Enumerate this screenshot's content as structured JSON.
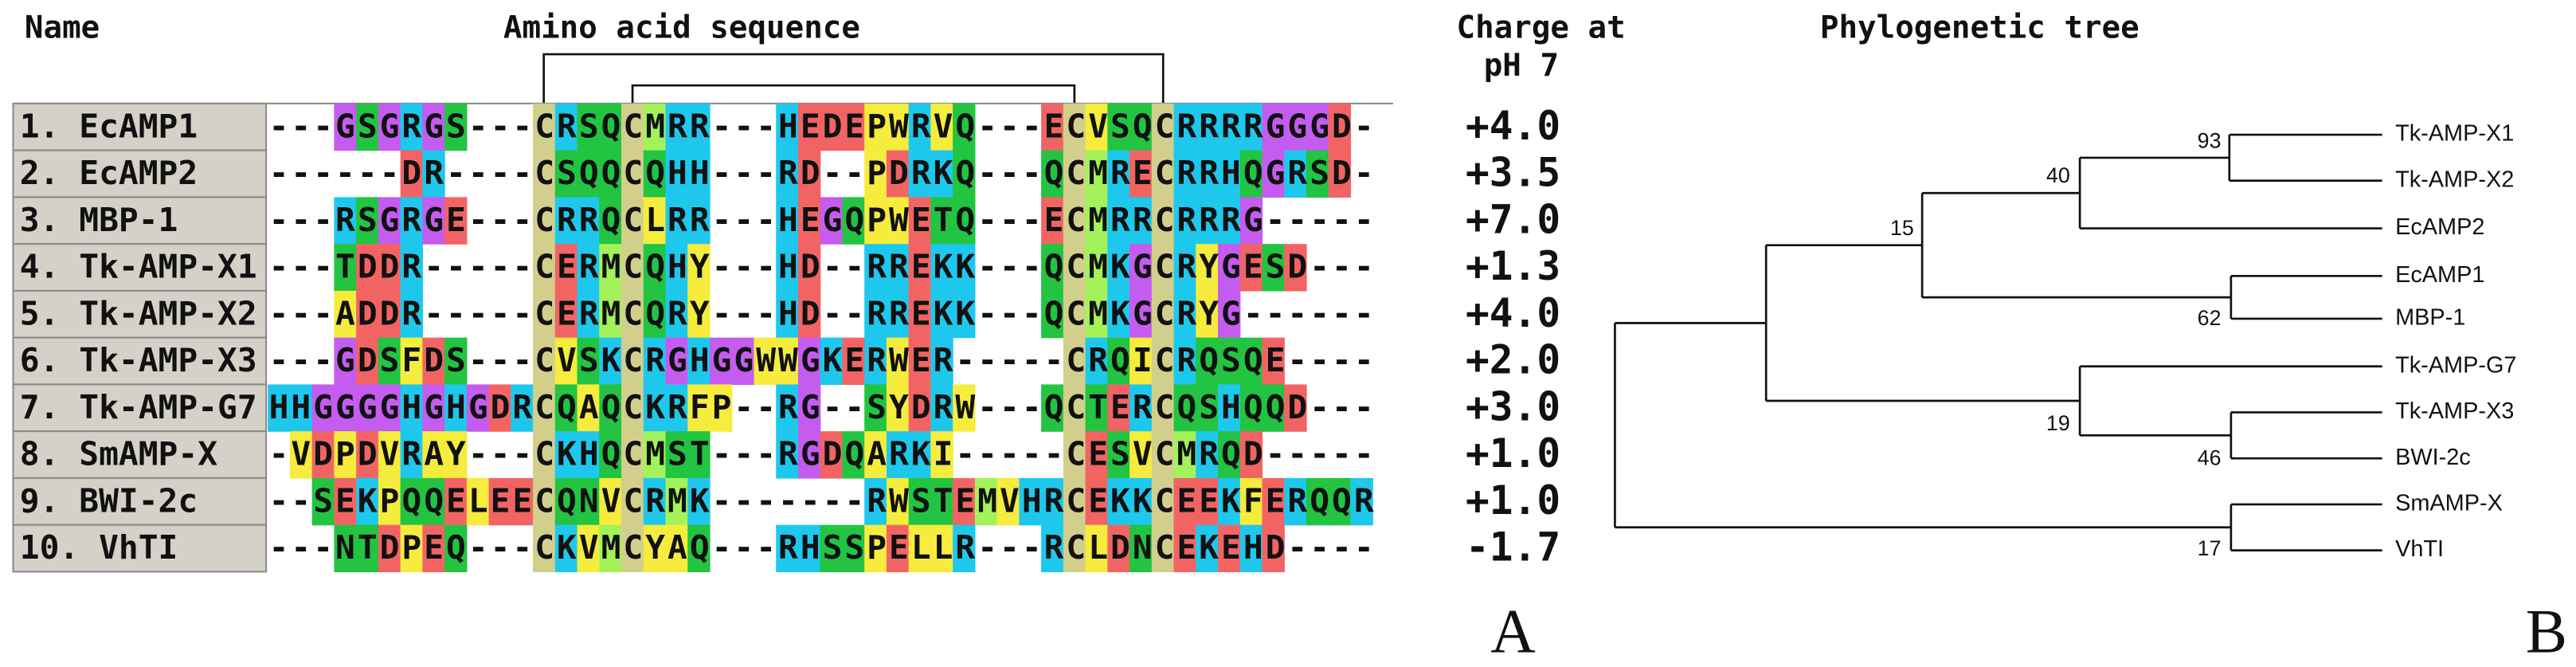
{
  "headers": {
    "name": "Name",
    "sequence": "Amino acid sequence",
    "charge": [
      "Charge at",
      "pH 7"
    ],
    "tree": "Phylogenetic tree"
  },
  "alignment": {
    "rows": [
      {
        "name": "1. EcAMP1",
        "sequence": "---GSGRGS---CRSQCMRR---HEDEPWRVQ---ECVSQCRRRRGGGD-",
        "charge": "+4.0"
      },
      {
        "name": "2. EcAMP2",
        "sequence": "------DR----CSQQCQHH---RD--PDRKQ---QCMRECRRHQGRSD-",
        "charge": "+3.5"
      },
      {
        "name": "3. MBP-1",
        "sequence": "---RSGRGE---CRRQCLRR---HEGQPWETQ---ECMRRCRRRG-----",
        "charge": "+7.0"
      },
      {
        "name": "4. Tk-AMP-X1",
        "sequence": "---TDDR-----CERMCQHY---HD--RREKK---QCMKGCRYGESD---",
        "charge": "+1.3"
      },
      {
        "name": "5. Tk-AMP-X2",
        "sequence": "---ADDR-----CERMCQRY---HD--RREKK---QCMKGCRYG------",
        "charge": "+4.0"
      },
      {
        "name": "6. Tk-AMP-X3",
        "sequence": "---GDSFDS---CVSKCRGHGGWWGKERWER-----CRQICRQSQE----",
        "charge": "+2.0"
      },
      {
        "name": "7. Tk-AMP-G7",
        "sequence": "HHGGGGHGHGDRCQAQCKRFP--RG--SYDRW---QCTERCQSHQQD---",
        "charge": "+3.0"
      },
      {
        "name": "8. SmAMP-X",
        "sequence": "-VDPDVRAY---CKHQCMST---RGDQARKI-----CESVCMRQD-----",
        "charge": "+1.0"
      },
      {
        "name": "9. BWI-2c",
        "sequence": "--SEKPQQELEECQNVCRMK-------RWSTEMVHRCEKKCEEKFERQQR",
        "charge": "+1.0"
      },
      {
        "name": "10. VhTI",
        "sequence": "---NTDPEQ---CKVMCYAQ---RHSSPELLR---RCLDNCEKEHD----",
        "charge": "-1.7"
      }
    ]
  },
  "tree": {
    "leaves": [
      "Tk-AMP-X1",
      "Tk-AMP-X2",
      "EcAMP2",
      "EcAMP1",
      "MBP-1",
      "Tk-AMP-G7",
      "Tk-AMP-X3",
      "BWI-2c",
      "SmAMP-X",
      "VhTI"
    ],
    "bootstrap": [
      "93",
      "40",
      "62",
      "15",
      "46",
      "19",
      "17"
    ]
  },
  "panels": [
    "A",
    "B"
  ]
}
